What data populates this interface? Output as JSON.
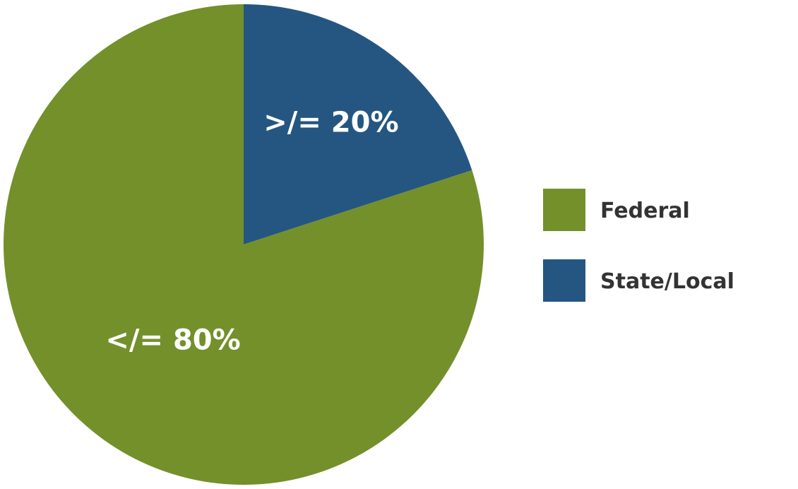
{
  "chart_data": {
    "type": "pie",
    "slices": [
      {
        "name": "Federal",
        "value": 80,
        "label": "</= 80%",
        "color": "#73902b"
      },
      {
        "name": "State/Local",
        "value": 20,
        "label": ">/= 20%",
        "color": "#255682"
      }
    ],
    "legend": {
      "placement": "right",
      "entries": [
        "Federal",
        "State/Local"
      ]
    }
  }
}
